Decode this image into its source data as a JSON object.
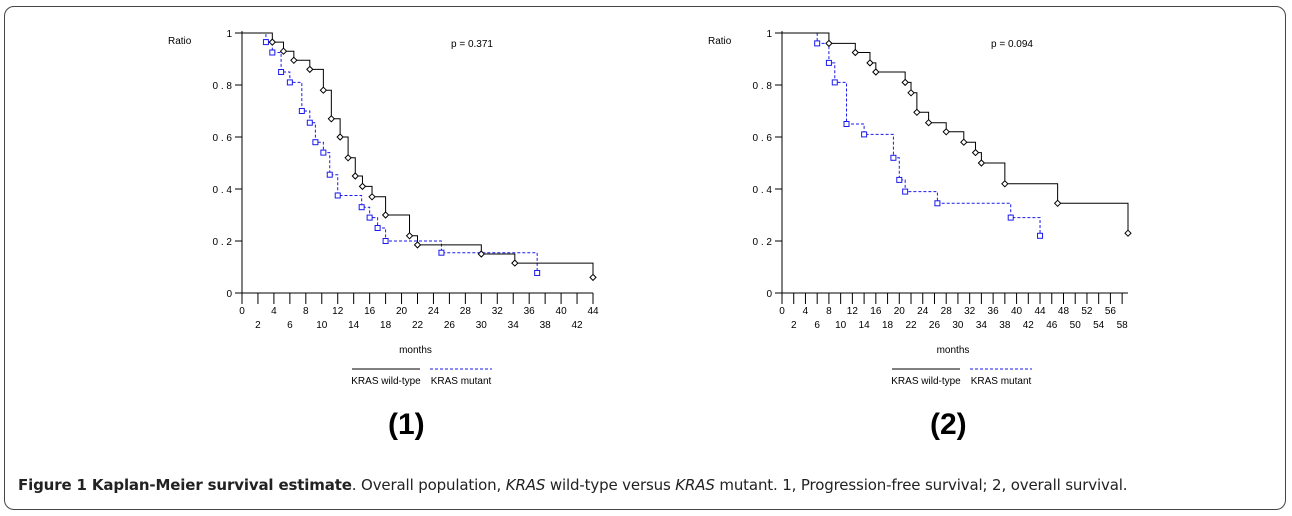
{
  "figure": {
    "caption_title": "Figure 1 Kaplan-Meier survival estimate",
    "caption_text_a": ". Overall population, ",
    "caption_italic_1": "KRAS",
    "caption_text_b": " wild-type versus ",
    "caption_italic_2": "KRAS",
    "caption_text_c": " mutant. 1, Progression-free survival; 2, overall survival.",
    "panel_labels": [
      "(1)",
      "(2)"
    ]
  },
  "colors": {
    "wild_type": "#000000",
    "mutant": "#1a1aee",
    "axis": "#000000"
  },
  "chart_data": [
    {
      "type": "line",
      "subtype": "kaplan-meier step",
      "ylabel": "Ratio",
      "xlabel": "months",
      "annotation": "p = 0.371",
      "xlim": [
        0,
        44
      ],
      "ylim": [
        0,
        1
      ],
      "yticks": [
        0,
        0.2,
        0.4,
        0.6,
        0.8,
        1
      ],
      "ytick_labels": [
        "0",
        "0 . 2",
        "0 . 4",
        "0 . 6",
        "0 . 8",
        "1"
      ],
      "xticks_upper": [
        "0",
        "4",
        "8",
        "12",
        "16",
        "20",
        "24",
        "28",
        "32",
        "36",
        "40",
        "44"
      ],
      "xticks_lower": [
        "2",
        "6",
        "10",
        "14",
        "18",
        "22",
        "26",
        "30",
        "34",
        "38",
        "42"
      ],
      "legend_position": "bottom",
      "series": [
        {
          "name": "KRAS wild-type",
          "style": "solid",
          "marker": "diamond",
          "points": [
            [
              0,
              1
            ],
            [
              3.8,
              0.965
            ],
            [
              5.2,
              0.93
            ],
            [
              6.5,
              0.895
            ],
            [
              8.5,
              0.86
            ],
            [
              10.2,
              0.78
            ],
            [
              11.2,
              0.67
            ],
            [
              12.3,
              0.6
            ],
            [
              13.3,
              0.52
            ],
            [
              14.2,
              0.45
            ],
            [
              15.1,
              0.41
            ],
            [
              16.3,
              0.37
            ],
            [
              18.0,
              0.3
            ],
            [
              21.0,
              0.22
            ],
            [
              22.0,
              0.185
            ],
            [
              30.0,
              0.15
            ],
            [
              34.2,
              0.115
            ],
            [
              44.0,
              0.06
            ]
          ],
          "censored": [
            [
              44.0,
              0.06
            ]
          ]
        },
        {
          "name": "KRAS mutant",
          "style": "dashed",
          "marker": "square",
          "points": [
            [
              0,
              1
            ],
            [
              3.0,
              0.965
            ],
            [
              3.8,
              0.925
            ],
            [
              4.9,
              0.85
            ],
            [
              6.0,
              0.81
            ],
            [
              7.5,
              0.7
            ],
            [
              8.5,
              0.655
            ],
            [
              9.2,
              0.58
            ],
            [
              10.2,
              0.54
            ],
            [
              11.0,
              0.455
            ],
            [
              12.0,
              0.375
            ],
            [
              15.0,
              0.33
            ],
            [
              16.0,
              0.29
            ],
            [
              17.0,
              0.25
            ],
            [
              18.0,
              0.2
            ],
            [
              25.0,
              0.155
            ],
            [
              37.0,
              0.077
            ]
          ],
          "censored": [
            [
              37.0,
              0.077
            ]
          ]
        }
      ]
    },
    {
      "type": "line",
      "subtype": "kaplan-meier step",
      "ylabel": "Ratio",
      "xlabel": "months",
      "annotation": "p = 0.094",
      "xlim": [
        0,
        59
      ],
      "ylim": [
        0,
        1
      ],
      "yticks": [
        0,
        0.2,
        0.4,
        0.6,
        0.8,
        1
      ],
      "ytick_labels": [
        "0",
        "0 . 2",
        "0 . 4",
        "0 . 6",
        "0 . 8",
        "1"
      ],
      "xticks_upper": [
        "0",
        "4",
        "8",
        "12",
        "16",
        "20",
        "24",
        "28",
        "32",
        "36",
        "40",
        "44",
        "48",
        "52",
        "56"
      ],
      "xticks_lower": [
        "2",
        "6",
        "10",
        "14",
        "18",
        "22",
        "26",
        "30",
        "34",
        "38",
        "42",
        "46",
        "50",
        "54",
        "58"
      ],
      "legend_position": "bottom",
      "series": [
        {
          "name": "KRAS wild-type",
          "style": "solid",
          "marker": "diamond",
          "points": [
            [
              0,
              1
            ],
            [
              8.0,
              0.96
            ],
            [
              12.5,
              0.925
            ],
            [
              15.0,
              0.885
            ],
            [
              16.0,
              0.85
            ],
            [
              21.0,
              0.81
            ],
            [
              22.0,
              0.77
            ],
            [
              23.0,
              0.695
            ],
            [
              25.0,
              0.655
            ],
            [
              28.0,
              0.62
            ],
            [
              31.0,
              0.58
            ],
            [
              33.0,
              0.54
            ],
            [
              34.0,
              0.5
            ],
            [
              38.0,
              0.42
            ],
            [
              47.0,
              0.345
            ],
            [
              59.0,
              0.23
            ]
          ],
          "censored": [
            [
              59.0,
              0.23
            ]
          ]
        },
        {
          "name": "KRAS mutant",
          "style": "dashed",
          "marker": "square",
          "points": [
            [
              0,
              1
            ],
            [
              6.0,
              0.96
            ],
            [
              8.0,
              0.885
            ],
            [
              9.0,
              0.81
            ],
            [
              11.0,
              0.65
            ],
            [
              14.0,
              0.61
            ],
            [
              19.0,
              0.52
            ],
            [
              20.0,
              0.435
            ],
            [
              21.0,
              0.39
            ],
            [
              26.5,
              0.345
            ],
            [
              39.0,
              0.29
            ],
            [
              44.0,
              0.22
            ]
          ],
          "censored": [
            [
              44.0,
              0.22
            ]
          ]
        }
      ]
    }
  ]
}
